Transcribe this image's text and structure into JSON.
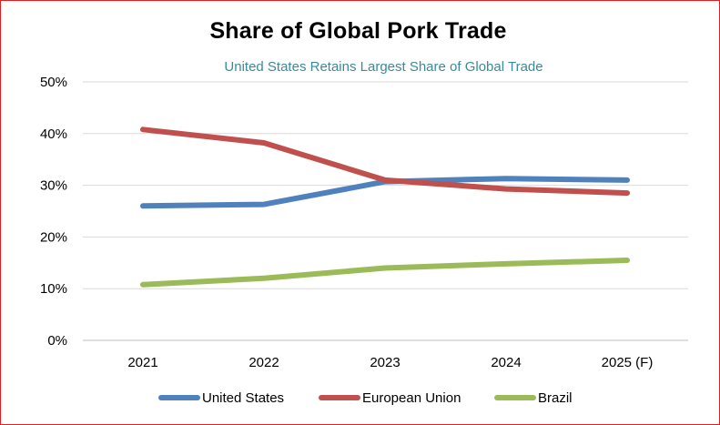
{
  "chart_data": {
    "type": "line",
    "title": "Share of Global Pork Trade",
    "subtitle": "United States Retains Largest Share of Global Trade",
    "categories": [
      "2021",
      "2022",
      "2023",
      "2024",
      "2025 (F)"
    ],
    "y_ticks": [
      "0%",
      "10%",
      "20%",
      "30%",
      "40%",
      "50%"
    ],
    "ylim": [
      0,
      50
    ],
    "y_unit": "%",
    "grid": true,
    "legend_position": "bottom",
    "series": [
      {
        "name": "United States",
        "color": "#4f81bd",
        "values": [
          26.0,
          26.3,
          30.7,
          31.3,
          31.0
        ]
      },
      {
        "name": "European Union",
        "color": "#c0504d",
        "values": [
          40.8,
          38.2,
          31.0,
          29.3,
          28.5
        ]
      },
      {
        "name": "Brazil",
        "color": "#9bbb59",
        "values": [
          10.8,
          12.0,
          14.0,
          14.8,
          15.5
        ]
      }
    ]
  }
}
